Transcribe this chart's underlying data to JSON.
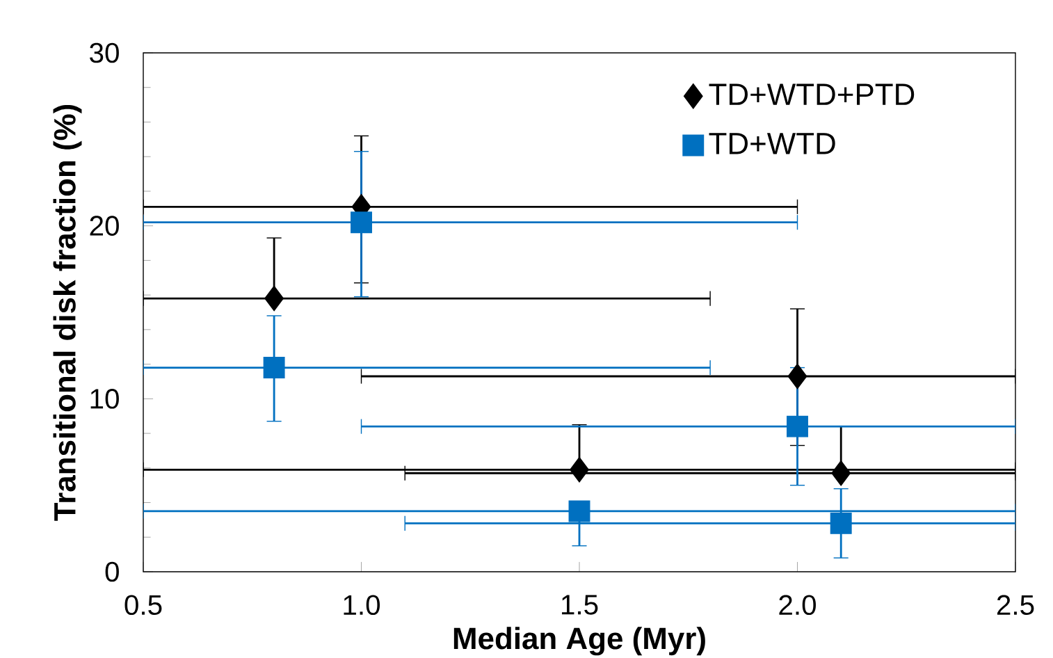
{
  "chart_data": {
    "type": "scatter",
    "xlabel": "Median Age (Myr)",
    "ylabel": "Transitional disk fraction (%)",
    "x": [
      0.8,
      1.0,
      1.5,
      2.0,
      2.1
    ],
    "xlim": [
      0.5,
      2.5
    ],
    "xticks": [
      {
        "value": 0.5,
        "label": "0.5"
      },
      {
        "value": 1.0,
        "label": "1.0"
      },
      {
        "value": 1.5,
        "label": "1.5"
      },
      {
        "value": 2.0,
        "label": "2.0"
      },
      {
        "value": 2.5,
        "label": "2.5"
      }
    ],
    "ylim": [
      0,
      30
    ],
    "yticks": [
      0,
      10,
      20,
      30
    ],
    "legend": "top right",
    "series": [
      {
        "name": "TD+WTD+PTD",
        "color": "#000000",
        "marker": "diamond",
        "values": [
          15.8,
          21.1,
          5.9,
          11.3,
          5.7
        ],
        "errors": [
          [
            15.8,
            19.3
          ],
          [
            16.7,
            25.2
          ],
          [
            5.9,
            8.5
          ],
          [
            7.3,
            15.2
          ],
          [
            5.7,
            8.4
          ]
        ],
        "xerrors": [
          [
            0.5,
            1.8
          ],
          [
            0.5,
            2.0
          ],
          [
            0.5,
            2.5
          ],
          [
            1.0,
            2.5
          ],
          [
            1.1,
            2.5
          ]
        ]
      },
      {
        "name": "TD+WTD",
        "color": "#0070c0",
        "marker": "square",
        "values": [
          11.8,
          20.2,
          3.5,
          8.4,
          2.8
        ],
        "errors": [
          [
            8.7,
            14.8
          ],
          [
            15.9,
            24.3
          ],
          [
            1.5,
            3.5
          ],
          [
            5.0,
            11.8
          ],
          [
            0.8,
            4.8
          ]
        ],
        "xerrors": [
          [
            0.5,
            1.8
          ],
          [
            0.5,
            2.0
          ],
          [
            0.5,
            2.5
          ],
          [
            1.0,
            2.5
          ],
          [
            1.1,
            2.5
          ]
        ]
      }
    ]
  }
}
